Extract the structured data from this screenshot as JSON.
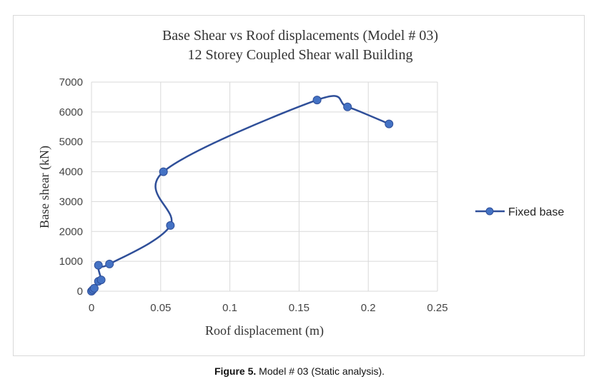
{
  "chart_data": {
    "type": "line",
    "title": "Base Shear vs Roof displacements (Model # 03)",
    "subtitle": "12 Storey Coupled Shear wall Building",
    "xlabel": "Roof displacement  (m)",
    "ylabel": "Base shear (kN)",
    "xlim": [
      0,
      0.25
    ],
    "ylim": [
      0,
      7000
    ],
    "xticks": [
      "0",
      "0.05",
      "0.1",
      "0.15",
      "0.2",
      "0.25"
    ],
    "yticks": [
      "0",
      "1000",
      "2000",
      "3000",
      "4000",
      "5000",
      "6000",
      "7000"
    ],
    "grid": true,
    "legend_position": "right",
    "series": [
      {
        "name": "Fixed base",
        "color": "#2f4f99",
        "x": [
          0.0,
          0.001,
          0.002,
          0.005,
          0.007,
          0.005,
          0.013,
          0.057,
          0.052,
          0.163,
          0.185,
          0.215
        ],
        "y": [
          0,
          50,
          100,
          330,
          380,
          870,
          910,
          2200,
          4000,
          6400,
          6170,
          5600
        ]
      }
    ]
  },
  "caption": {
    "label": "Figure 5.",
    "text": " Model # 03 (Static analysis)."
  }
}
